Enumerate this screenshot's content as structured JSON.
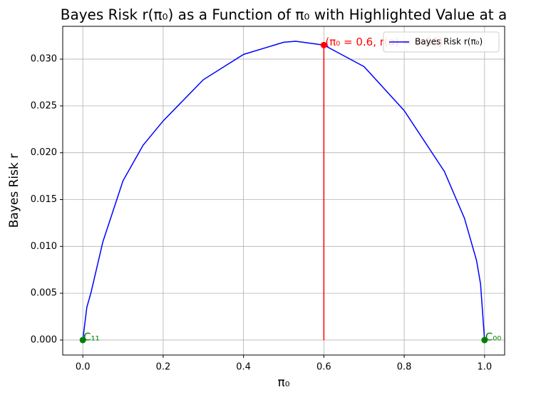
{
  "chart_data": {
    "type": "line",
    "title": "Bayes Risk r(π₀) as a Function of π₀ with Highlighted Value at a",
    "xlabel": "π₀",
    "ylabel": "Bayes Risk r",
    "xlim": [
      -0.05,
      1.05
    ],
    "ylim": [
      -0.0016,
      0.0335
    ],
    "xticks": [
      {
        "value": 0,
        "label": "0.0"
      },
      {
        "value": 0.2,
        "label": "0.2"
      },
      {
        "value": 0.4,
        "label": "0.4"
      },
      {
        "value": 0.6,
        "label": "0.6"
      },
      {
        "value": 0.8,
        "label": "0.8"
      },
      {
        "value": 1,
        "label": "1.0"
      }
    ],
    "yticks": [
      {
        "value": 0,
        "label": "0.000"
      },
      {
        "value": 0.005,
        "label": "0.005"
      },
      {
        "value": 0.01,
        "label": "0.010"
      },
      {
        "value": 0.015,
        "label": "0.015"
      },
      {
        "value": 0.02,
        "label": "0.020"
      },
      {
        "value": 0.025,
        "label": "0.025"
      },
      {
        "value": 0.03,
        "label": "0.030"
      }
    ],
    "grid": true,
    "legend": "upper right",
    "series": [
      {
        "name": "Bayes Risk r(π₀)",
        "color": "#0000ff",
        "x": [
          0,
          0.01,
          0.02,
          0.05,
          0.1,
          0.15,
          0.2,
          0.3,
          0.4,
          0.5,
          0.53,
          0.6,
          0.7,
          0.8,
          0.9,
          0.95,
          0.98,
          0.99,
          1
        ],
        "values": [
          0,
          0.0035,
          0.005,
          0.0105,
          0.017,
          0.0208,
          0.0234,
          0.0278,
          0.0305,
          0.0318,
          0.0319,
          0.0315,
          0.0292,
          0.0245,
          0.018,
          0.013,
          0.0085,
          0.006,
          0
        ]
      }
    ],
    "highlight": {
      "x": 0.6,
      "y": 0.0315,
      "color": "#ff0000",
      "label": "(π₀ = 0.6, r(a) = 0.03)"
    },
    "endpoints": {
      "color": "#008000",
      "points": [
        {
          "x": 0,
          "y": 0,
          "label": "C₁₁"
        },
        {
          "x": 1,
          "y": 0,
          "label": "C₀₀"
        }
      ]
    }
  }
}
